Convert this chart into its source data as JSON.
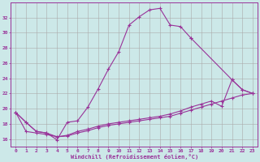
{
  "xlabel": "Windchill (Refroidissement éolien,°C)",
  "background_color": "#cce8e8",
  "grid_color": "#aaaaaa",
  "line_color": "#993399",
  "xlim": [
    -0.5,
    23.5
  ],
  "ylim": [
    15.0,
    34.0
  ],
  "yticks": [
    16,
    18,
    20,
    22,
    24,
    26,
    28,
    30,
    32
  ],
  "xticks": [
    0,
    1,
    2,
    3,
    4,
    5,
    6,
    7,
    8,
    9,
    10,
    11,
    12,
    13,
    14,
    15,
    16,
    17,
    18,
    19,
    20,
    21,
    22,
    23
  ],
  "line1_x": [
    0,
    1,
    2,
    3,
    4,
    5,
    6,
    7,
    8,
    9,
    10,
    11,
    12,
    13,
    14,
    15,
    16,
    17
  ],
  "line1_y": [
    19.5,
    18.2,
    17.0,
    16.8,
    15.9,
    18.2,
    18.4,
    20.2,
    22.6,
    25.2,
    27.5,
    31.0,
    32.1,
    33.0,
    33.2,
    31.0,
    30.8,
    29.3
  ],
  "line2_x": [
    0,
    1,
    2,
    3,
    4,
    5,
    6,
    7,
    8,
    9,
    10,
    11,
    12,
    13,
    14,
    15,
    16,
    17,
    18,
    19,
    20,
    21,
    22,
    23
  ],
  "line2_y": [
    19.5,
    18.2,
    17.0,
    16.8,
    16.3,
    16.4,
    16.8,
    17.1,
    17.5,
    17.8,
    18.0,
    18.2,
    18.4,
    18.6,
    18.8,
    19.0,
    19.4,
    19.8,
    20.2,
    20.6,
    21.0,
    21.4,
    21.8,
    22.0
  ],
  "line3_x": [
    0,
    1,
    2,
    3,
    4,
    5,
    6,
    7,
    8,
    9,
    10,
    11,
    12,
    13,
    14,
    15,
    16,
    17,
    18,
    19,
    20,
    21,
    22,
    23
  ],
  "line3_y": [
    19.5,
    17.0,
    16.8,
    16.6,
    16.3,
    16.5,
    17.0,
    17.3,
    17.7,
    18.0,
    18.2,
    18.4,
    18.6,
    18.8,
    19.0,
    19.3,
    19.7,
    20.2,
    20.6,
    21.0,
    20.3,
    23.8,
    22.5,
    22.0
  ],
  "line4_x": [
    17,
    21,
    22,
    23
  ],
  "line4_y": [
    29.3,
    23.8,
    22.5,
    22.0
  ]
}
